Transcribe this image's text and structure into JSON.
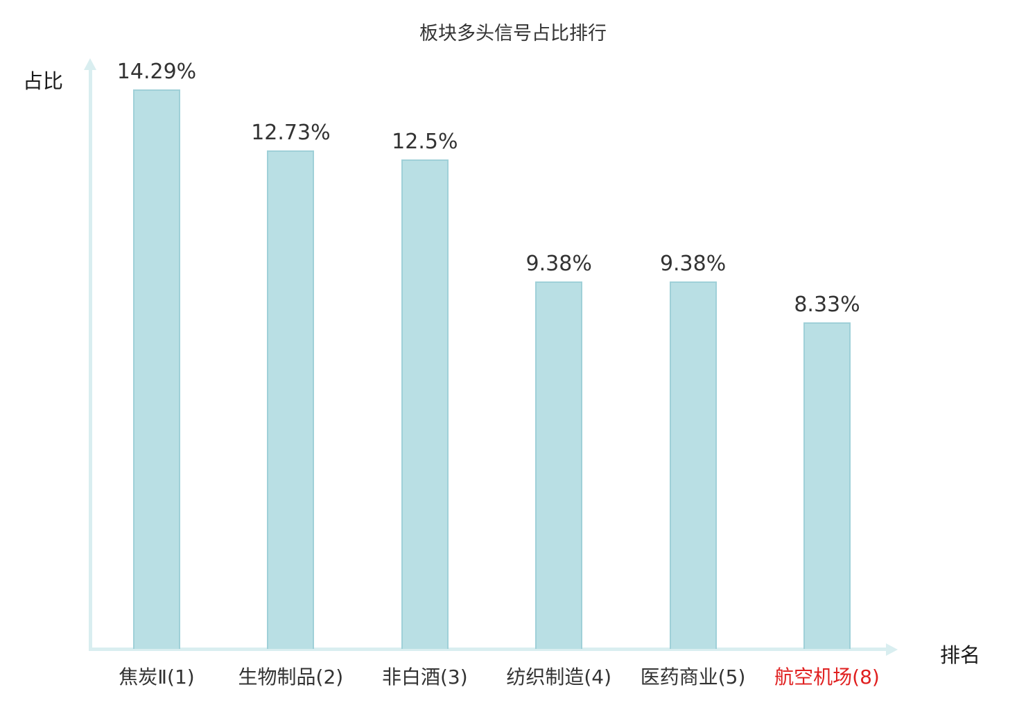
{
  "chart_data": {
    "type": "bar",
    "title": "板块多头信号占比排行",
    "ylabel": "占比",
    "xlabel": "排名",
    "categories": [
      "焦炭Ⅱ(1)",
      "生物制品(2)",
      "非白酒(3)",
      "纺织制造(4)",
      "医药商业(5)",
      "航空机场(8)"
    ],
    "values": [
      14.29,
      12.73,
      12.5,
      9.38,
      9.38,
      8.33
    ],
    "value_labels": [
      "14.29%",
      "12.73%",
      "12.5%",
      "9.38%",
      "9.38%",
      "8.33%"
    ],
    "ylim": [
      0,
      15
    ],
    "grid": false,
    "legend_position": "none",
    "highlight_index": 5,
    "colors": {
      "bar_fill": "#b9dfe4",
      "bar_border": "#9fd0d8",
      "axis": "#d9eef0",
      "text": "#333333",
      "highlight_text": "#e02020"
    }
  }
}
